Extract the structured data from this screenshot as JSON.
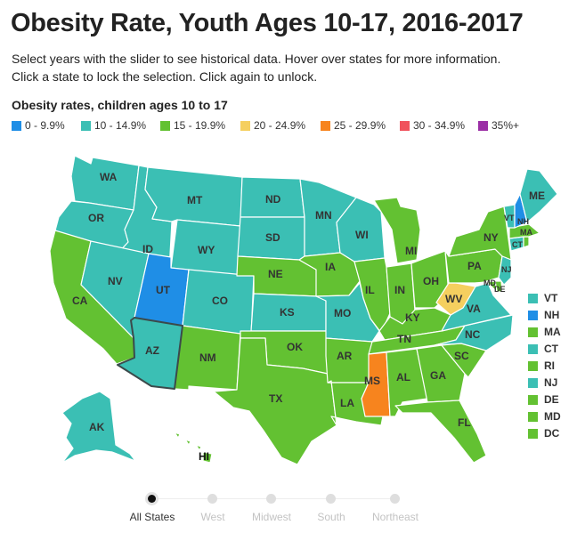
{
  "header": {
    "title": "Obesity Rate, Youth Ages 10-17, 2016-2017",
    "description": "Select years with the slider to see historical data. Hover over states for more information. Click a state to lock the selection. Click again to unlock."
  },
  "legend": {
    "title": "Obesity rates, children ages 10 to 17",
    "items": [
      {
        "label": "0 - 9.9%",
        "color": "#1f8ee6"
      },
      {
        "label": "10 - 14.9%",
        "color": "#3bbfb4"
      },
      {
        "label": "15 - 19.9%",
        "color": "#63c132"
      },
      {
        "label": "20 - 24.9%",
        "color": "#f5cf5f"
      },
      {
        "label": "25 - 29.9%",
        "color": "#f7841e"
      },
      {
        "label": "30 - 34.9%",
        "color": "#f0525c"
      },
      {
        "label": "35%+",
        "color": "#9b2fa6"
      }
    ]
  },
  "map": {
    "selected_state": "AZ",
    "states": [
      {
        "abbr": "WA",
        "bucket": 1
      },
      {
        "abbr": "OR",
        "bucket": 1
      },
      {
        "abbr": "CA",
        "bucket": 2
      },
      {
        "abbr": "ID",
        "bucket": 1
      },
      {
        "abbr": "NV",
        "bucket": 1
      },
      {
        "abbr": "MT",
        "bucket": 1
      },
      {
        "abbr": "WY",
        "bucket": 1
      },
      {
        "abbr": "UT",
        "bucket": 0
      },
      {
        "abbr": "AZ",
        "bucket": 1
      },
      {
        "abbr": "CO",
        "bucket": 1
      },
      {
        "abbr": "NM",
        "bucket": 2
      },
      {
        "abbr": "ND",
        "bucket": 1
      },
      {
        "abbr": "SD",
        "bucket": 1
      },
      {
        "abbr": "NE",
        "bucket": 2
      },
      {
        "abbr": "KS",
        "bucket": 1
      },
      {
        "abbr": "OK",
        "bucket": 2
      },
      {
        "abbr": "TX",
        "bucket": 2
      },
      {
        "abbr": "MN",
        "bucket": 1
      },
      {
        "abbr": "IA",
        "bucket": 2
      },
      {
        "abbr": "MO",
        "bucket": 1
      },
      {
        "abbr": "AR",
        "bucket": 2
      },
      {
        "abbr": "LA",
        "bucket": 2
      },
      {
        "abbr": "WI",
        "bucket": 1
      },
      {
        "abbr": "IL",
        "bucket": 2
      },
      {
        "abbr": "MI",
        "bucket": 2
      },
      {
        "abbr": "IN",
        "bucket": 2
      },
      {
        "abbr": "OH",
        "bucket": 2
      },
      {
        "abbr": "KY",
        "bucket": 2
      },
      {
        "abbr": "TN",
        "bucket": 2
      },
      {
        "abbr": "MS",
        "bucket": 4
      },
      {
        "abbr": "AL",
        "bucket": 2
      },
      {
        "abbr": "GA",
        "bucket": 2
      },
      {
        "abbr": "FL",
        "bucket": 2
      },
      {
        "abbr": "SC",
        "bucket": 2
      },
      {
        "abbr": "NC",
        "bucket": 1
      },
      {
        "abbr": "VA",
        "bucket": 1
      },
      {
        "abbr": "WV",
        "bucket": 3
      },
      {
        "abbr": "PA",
        "bucket": 2
      },
      {
        "abbr": "NY",
        "bucket": 2
      },
      {
        "abbr": "ME",
        "bucket": 1
      },
      {
        "abbr": "AK",
        "bucket": 1
      },
      {
        "abbr": "HI",
        "bucket": 2
      }
    ],
    "small_states": [
      {
        "abbr": "VT",
        "bucket": 1
      },
      {
        "abbr": "NH",
        "bucket": 0
      },
      {
        "abbr": "MA",
        "bucket": 2
      },
      {
        "abbr": "CT",
        "bucket": 1
      },
      {
        "abbr": "RI",
        "bucket": 2
      },
      {
        "abbr": "NJ",
        "bucket": 1
      },
      {
        "abbr": "DE",
        "bucket": 2
      },
      {
        "abbr": "MD",
        "bucket": 2
      },
      {
        "abbr": "DC",
        "bucket": 2
      }
    ]
  },
  "slider": {
    "selected_index": 0,
    "stops": [
      {
        "label": "All States"
      },
      {
        "label": "West"
      },
      {
        "label": "Midwest"
      },
      {
        "label": "South"
      },
      {
        "label": "Northeast"
      }
    ]
  }
}
